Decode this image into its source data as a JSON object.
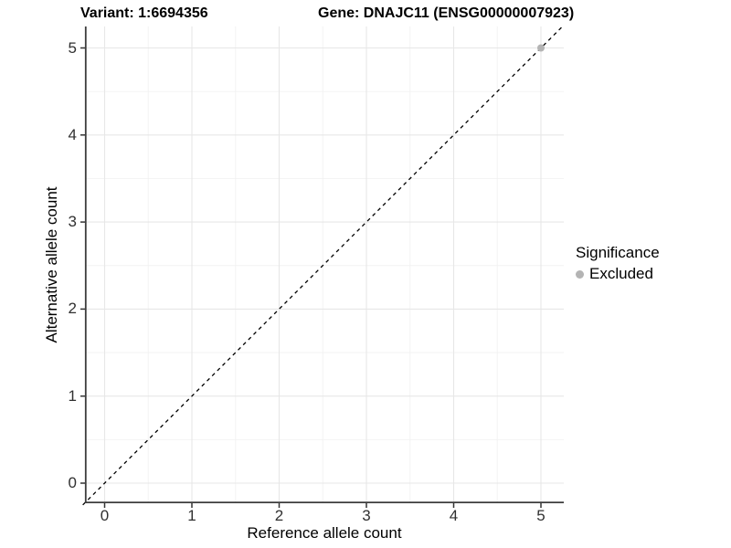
{
  "titles": {
    "variant": "Variant: 1:6694356",
    "gene": "Gene: DNAJC11 (ENSG00000007923)"
  },
  "chart_data": {
    "type": "scatter",
    "xlabel": "Reference allele count",
    "ylabel": "Alternative allele count",
    "xlim": [
      -0.25,
      5.25
    ],
    "ylim": [
      -0.25,
      5.25
    ],
    "x_ticks": [
      0,
      1,
      2,
      3,
      4,
      5
    ],
    "y_ticks": [
      0,
      1,
      2,
      3,
      4,
      5
    ],
    "minor_gridlines": [
      0.5,
      1.5,
      2.5,
      3.5,
      4.5
    ],
    "grid": "major+minor on white background",
    "identity_line": {
      "from": [
        -0.25,
        -0.25
      ],
      "to": [
        5.25,
        5.25
      ],
      "style": "dashed",
      "color": "#000000"
    },
    "series": [
      {
        "name": "Excluded",
        "color": "#b4b4b4",
        "points": [
          [
            5,
            5
          ]
        ]
      }
    ],
    "legend": {
      "title": "Significance",
      "position": "right",
      "items": [
        {
          "label": "Excluded",
          "color": "#b4b4b4"
        }
      ]
    }
  },
  "colors": {
    "background": "#ffffff",
    "grid_major": "#e7e7e7",
    "grid_minor": "#f2f2f2",
    "axis_line": "#3d3d3d",
    "tick_mark": "#333333",
    "tick_label": "#303030",
    "point": "#b4b4b4"
  }
}
